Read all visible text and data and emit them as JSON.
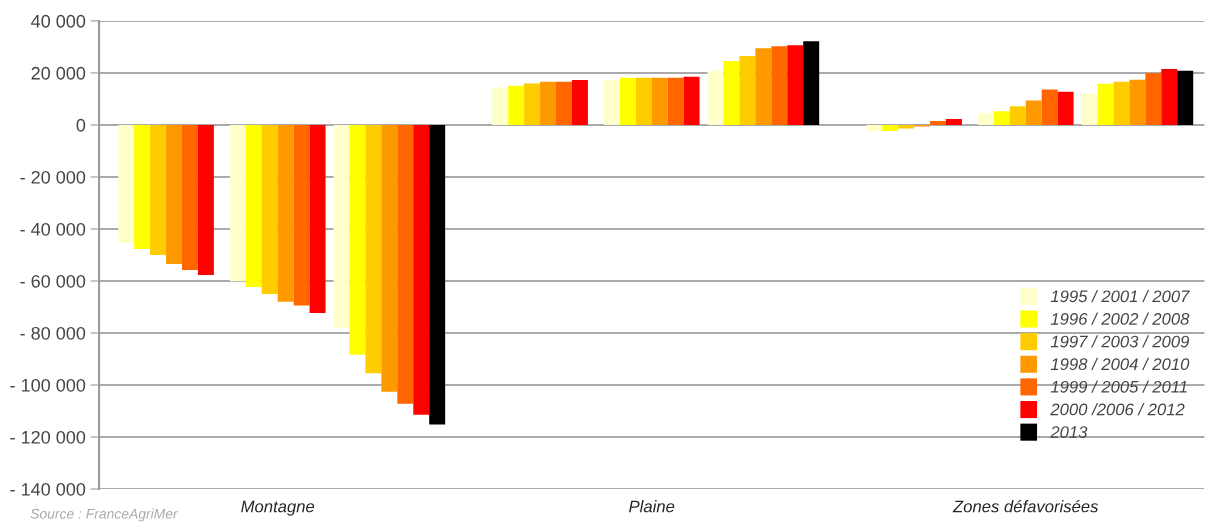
{
  "chart_data": {
    "type": "bar",
    "categories": [
      null,
      "Montagne",
      null,
      null,
      "Plaine",
      null,
      null,
      "Zones défavorisées",
      null
    ],
    "series": [
      {
        "name": "1995 / 2001 / 2007",
        "color": "#ffffcc",
        "values": [
          -45400,
          -60100,
          -78000,
          14300,
          17300,
          20800,
          -2300,
          4500,
          12100
        ]
      },
      {
        "name": "1996 / 2002 / 2008",
        "color": "#ffff00",
        "values": [
          -47700,
          -62300,
          -88400,
          15100,
          18100,
          24600,
          -2300,
          5300,
          15800
        ]
      },
      {
        "name": "1997 / 2003 / 2009",
        "color": "#ffcc00",
        "values": [
          -50000,
          -65000,
          -95500,
          15900,
          18100,
          26500,
          -1400,
          7200,
          16600
        ]
      },
      {
        "name": "1998 / 2004 / 2010",
        "color": "#ff9900",
        "values": [
          -53500,
          -68000,
          -102600,
          16600,
          18100,
          29500,
          -600,
          9400,
          17400
        ]
      },
      {
        "name": "1999 / 2005 / 2011",
        "color": "#ff6600",
        "values": [
          -55800,
          -69400,
          -107200,
          16600,
          18100,
          30300,
          1500,
          13600,
          20000
        ]
      },
      {
        "name": "2000 /2006 / 2012",
        "color": "#ff0000",
        "values": [
          -57700,
          -72300,
          -111400,
          17300,
          18500,
          30600,
          2300,
          12800,
          21500
        ]
      },
      {
        "name": "2013",
        "color": "#000000",
        "values": [
          null,
          null,
          -115200,
          null,
          null,
          32200,
          null,
          null,
          20800
        ]
      }
    ],
    "ylim": [
      -140000,
      40000
    ],
    "yticks": [
      {
        "value": -140000,
        "label": "- 140 000"
      },
      {
        "value": -120000,
        "label": "- 120 000"
      },
      {
        "value": -100000,
        "label": "- 100 000"
      },
      {
        "value": -80000,
        "label": "- 80 000"
      },
      {
        "value": -60000,
        "label": "- 60 000"
      },
      {
        "value": -40000,
        "label": "- 40 000"
      },
      {
        "value": -20000,
        "label": "- 20 000"
      },
      0,
      {
        "value": 20000,
        "label": "20 000"
      },
      {
        "value": 40000,
        "label": "40 000"
      }
    ],
    "grid": "y",
    "legend": "bottom right",
    "annotations": [
      "Source : FranceAgriMer"
    ]
  }
}
